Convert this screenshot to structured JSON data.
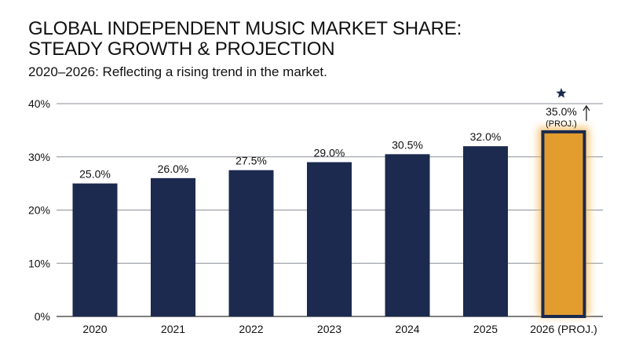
{
  "header": {
    "title_line1": "GLOBAL INDEPENDENT MUSIC MARKET SHARE:",
    "title_line2": "STEADY GROWTH & PROJECTION",
    "subtitle": "2020–2026: Reflecting a rising trend in the market."
  },
  "chart_data": {
    "type": "bar",
    "title": "GLOBAL INDEPENDENT MUSIC MARKET SHARE: STEADY GROWTH & PROJECTION",
    "subtitle": "2020–2026: Reflecting a rising trend in the market.",
    "categories": [
      "2020",
      "2021",
      "2022",
      "2023",
      "2024",
      "2025",
      "2026 (PROJ.)"
    ],
    "values": [
      25.0,
      26.0,
      27.5,
      29.0,
      30.5,
      32.0,
      35.0
    ],
    "data_labels": [
      "25.0%",
      "26.0%",
      "27.5%",
      "29.0%",
      "30.5%",
      "32.0%",
      "35.0%"
    ],
    "projected_note": "(PROJ.)",
    "ylim": [
      0,
      40
    ],
    "yticks": [
      0,
      10,
      20,
      30,
      40
    ],
    "ytick_labels": [
      "0%",
      "10%",
      "20%",
      "30%",
      "40%"
    ],
    "xlabel": "",
    "ylabel": "",
    "grid": true,
    "legend": "none",
    "colors": {
      "bar": "#1b2a4e",
      "projected_bar": "#e39c2e",
      "projected_outline": "#1b2a4e",
      "projected_glow": "#f2b24a",
      "grid": "#8a8f98",
      "star": "#1b2a4e"
    }
  }
}
